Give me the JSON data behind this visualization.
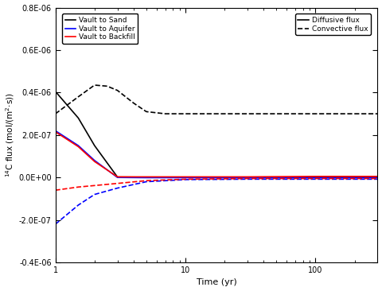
{
  "title": "",
  "xlabel": "Time (yr)",
  "ylabel": "$^{14}$C flux (mol/(m$^{2}$$\\cdot$s))",
  "xlim": [
    1,
    300
  ],
  "ylim": [
    -4e-07,
    8e-07
  ],
  "yticks": [
    -4e-07,
    -2e-07,
    0.0,
    2e-07,
    4e-07,
    6e-07,
    8e-07
  ],
  "ytick_labels": [
    "-4.0E-07",
    "-2.0E-07",
    "0.0E+00",
    "2.0E-07",
    "4.0E-07",
    "6.0E-07",
    "8.0E-07"
  ],
  "lines": {
    "vault_to_sand_diff": {
      "x": [
        1,
        1.5,
        2,
        3,
        5,
        10,
        30,
        100,
        300
      ],
      "y": [
        4.05e-07,
        2.8e-07,
        1.5e-07,
        2e-09,
        1e-09,
        1e-09,
        1e-09,
        1e-09,
        1e-09
      ],
      "color": "black",
      "linestyle": "-",
      "linewidth": 1.2
    },
    "vault_to_aquifer_diff": {
      "x": [
        1,
        1.5,
        2,
        3,
        5,
        10,
        30,
        100,
        300
      ],
      "y": [
        2.2e-07,
        1.5e-07,
        8e-08,
        0.0,
        -1e-09,
        -1e-09,
        -1e-09,
        -1e-09,
        -1e-09
      ],
      "color": "blue",
      "linestyle": "-",
      "linewidth": 1.2
    },
    "vault_to_backfill_diff": {
      "x": [
        1,
        1.5,
        2,
        3,
        5,
        10,
        30,
        100,
        300
      ],
      "y": [
        2.15e-07,
        1.45e-07,
        7.5e-08,
        3e-09,
        3e-09,
        3e-09,
        3e-09,
        5e-09,
        5e-09
      ],
      "color": "red",
      "linestyle": "-",
      "linewidth": 1.2
    },
    "vault_to_sand_conv": {
      "x": [
        1,
        1.5,
        2,
        2.5,
        3,
        4,
        5,
        7,
        10,
        30,
        100,
        300
      ],
      "y": [
        3e-07,
        3.8e-07,
        4.35e-07,
        4.3e-07,
        4.1e-07,
        3.5e-07,
        3.1e-07,
        3e-07,
        3e-07,
        3e-07,
        3e-07,
        3e-07
      ],
      "color": "black",
      "linestyle": "--",
      "linewidth": 1.2
    },
    "vault_to_aquifer_conv": {
      "x": [
        1,
        1.5,
        2,
        3,
        5,
        10,
        30,
        100,
        300
      ],
      "y": [
        -2.2e-07,
        -1.3e-07,
        -8e-08,
        -5e-08,
        -2e-08,
        -1e-08,
        -8e-09,
        -8e-09,
        -8e-09
      ],
      "color": "blue",
      "linestyle": "--",
      "linewidth": 1.2
    },
    "vault_to_backfill_conv": {
      "x": [
        1,
        1.5,
        2,
        3,
        5,
        10,
        30,
        100,
        300
      ],
      "y": [
        -6e-08,
        -4.5e-08,
        -3.8e-08,
        -2.8e-08,
        -1.5e-08,
        -8e-09,
        -5e-09,
        -5e-09,
        -5e-09
      ],
      "color": "red",
      "linestyle": "--",
      "linewidth": 1.2
    }
  },
  "xtick_vals": [
    1,
    10,
    100
  ],
  "xtick_labels": [
    "1",
    "10",
    "100"
  ],
  "figsize": [
    4.8,
    3.66
  ],
  "dpi": 100
}
